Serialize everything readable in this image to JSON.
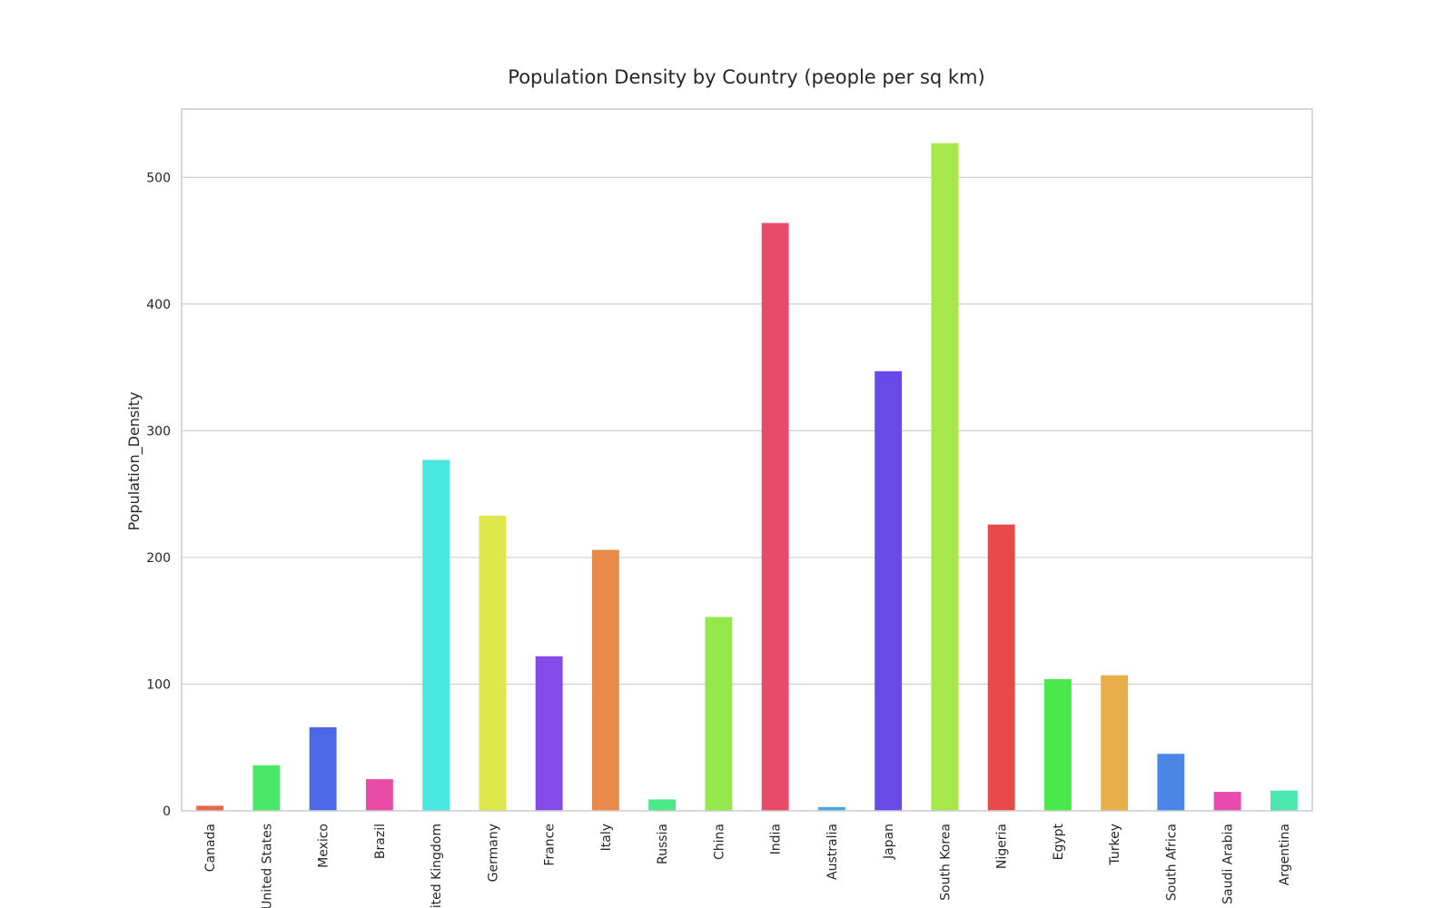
{
  "chart_data": {
    "type": "bar",
    "title": "Population Density by Country (people per sq km)",
    "xlabel": "",
    "ylabel": "Population_Density",
    "ylim": [
      0,
      554
    ],
    "yticks": [
      0,
      100,
      200,
      300,
      400,
      500
    ],
    "grid": "horizontal",
    "categories": [
      "Canada",
      "United States",
      "Mexico",
      "Brazil",
      "United Kingdom",
      "Germany",
      "France",
      "Italy",
      "Russia",
      "China",
      "India",
      "Australia",
      "Japan",
      "South Korea",
      "Nigeria",
      "Egypt",
      "Turkey",
      "South Africa",
      "Saudi Arabia",
      "Argentina"
    ],
    "values": [
      4,
      36,
      66,
      25,
      277,
      233,
      122,
      206,
      9,
      153,
      464,
      3,
      347,
      527,
      226,
      104,
      107,
      45,
      15,
      16
    ],
    "colors": [
      "#e8664a",
      "#4ae868",
      "#4a68e8",
      "#e84aa6",
      "#4ae8e0",
      "#dfe84a",
      "#854ae8",
      "#e88a4a",
      "#4ae886",
      "#94e84a",
      "#e84a68",
      "#4aa6e8",
      "#684ae8",
      "#a6e84a",
      "#e84a4a",
      "#4ae84a",
      "#e8ae4a",
      "#4a86e8",
      "#e84ab0",
      "#4ae8b0"
    ]
  }
}
